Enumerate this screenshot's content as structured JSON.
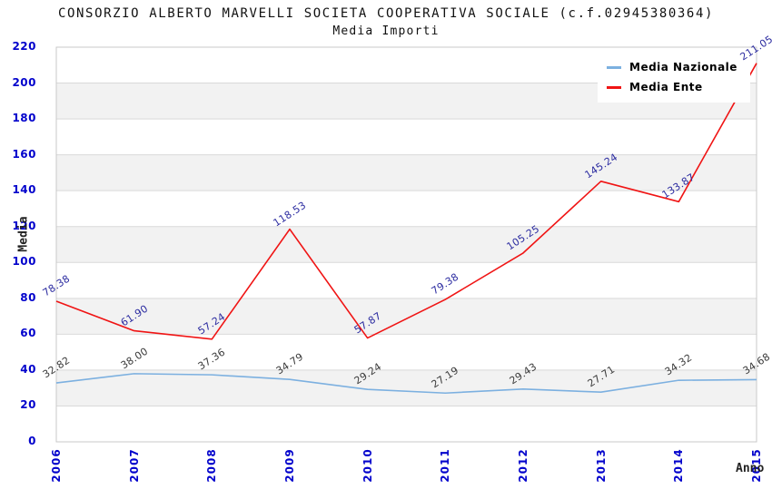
{
  "title": "CONSORZIO ALBERTO MARVELLI SOCIETA COOPERATIVA SOCIALE (c.f.02945380364)",
  "subtitle": "Media Importi",
  "axis_tick_color": "#0202cc",
  "chart_data": {
    "type": "line",
    "x": [
      "2006",
      "2007",
      "2008",
      "2009",
      "2010",
      "2011",
      "2012",
      "2013",
      "2014",
      "2015"
    ],
    "series": [
      {
        "name": "Media Nazionale",
        "color": "#7cb0e0",
        "label_color": "#3a3a3a",
        "values": [
          32.82,
          38.0,
          37.36,
          34.79,
          29.24,
          27.19,
          29.43,
          27.71,
          34.32,
          34.68
        ],
        "labels": [
          "32.82",
          "38.00",
          "37.36",
          "34.79",
          "29.24",
          "27.19",
          "29.43",
          "27.71",
          "34.32",
          "34.68"
        ]
      },
      {
        "name": "Media Ente",
        "color": "#f01414",
        "label_color": "#2b2ba0",
        "values": [
          78.38,
          61.9,
          57.24,
          118.53,
          57.87,
          79.38,
          105.25,
          145.24,
          133.87,
          211.05
        ],
        "labels": [
          "78.38",
          "61.90",
          "57.24",
          "118.53",
          "57.87",
          "79.38",
          "105.25",
          "145.24",
          "133.87",
          "211.05"
        ]
      }
    ],
    "xlabel": "Anno",
    "ylabel": "Media",
    "ylim": [
      0,
      220
    ],
    "ytick_step": 20,
    "yticks": [
      "0",
      "20",
      "40",
      "60",
      "80",
      "100",
      "120",
      "140",
      "160",
      "180",
      "200",
      "220"
    ],
    "grid": true,
    "band_colors": [
      "#ffffff",
      "#f2f2f2"
    ],
    "gridline_color": "#d9d9d9",
    "plot_border_color": "#c9c9c9",
    "legend_position": "top-right"
  }
}
